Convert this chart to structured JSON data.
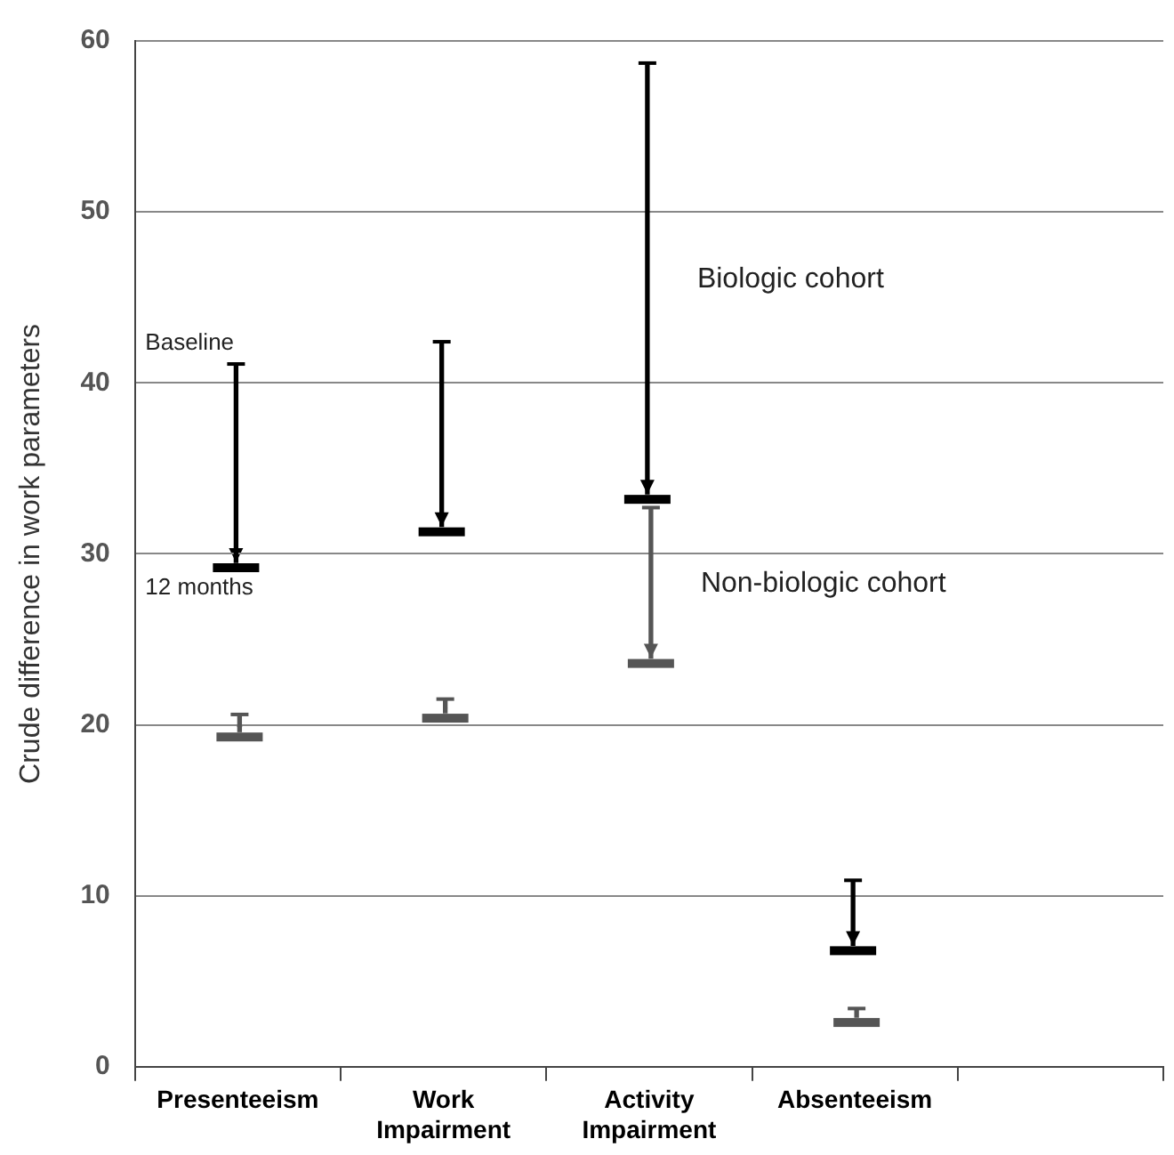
{
  "chart_data": {
    "type": "bar",
    "ylabel": "Crude difference in work parameters",
    "categories": [
      "Presenteeism",
      "Work Impairment",
      "Activity Impairment",
      "Absenteeism",
      null
    ],
    "series": [
      {
        "name": "Biologic cohort",
        "color": "#000000",
        "base": [
          29.5,
          31.6,
          33.5,
          7.1,
          null
        ],
        "values": [
          11.5,
          10.7,
          25.1,
          3.7,
          null
        ]
      },
      {
        "name": "Non-biologic cohort",
        "color": "#555555",
        "base": [
          19.6,
          20.7,
          23.9,
          2.9,
          null
        ],
        "values": [
          0.9,
          0.7,
          8.7,
          0.4,
          null
        ]
      }
    ],
    "ylim": [
      0,
      60
    ],
    "yticks": [
      0,
      10,
      20,
      30,
      40,
      50,
      60
    ],
    "grid": "y",
    "legend": false,
    "annotations": [
      {
        "text": "Baseline",
        "x": "Presenteeism",
        "y": 41
      },
      {
        "text": "12 months",
        "x": "Presenteeism",
        "y": 29.5
      }
    ]
  }
}
